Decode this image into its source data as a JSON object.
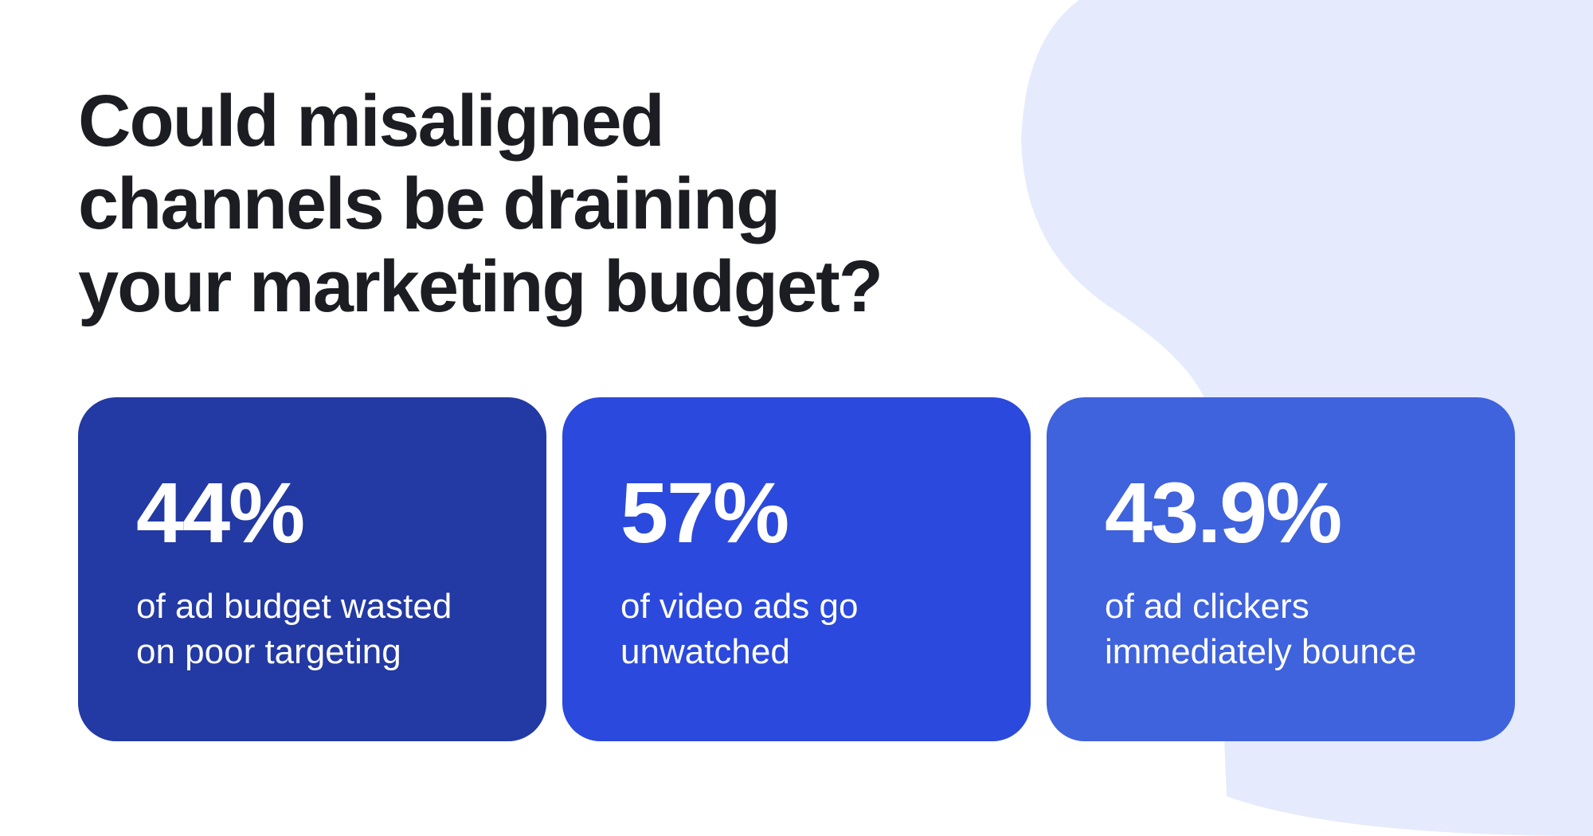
{
  "headline": {
    "lines": [
      "Could misaligned",
      "channels be draining",
      "your marketing budget?"
    ]
  },
  "stats": [
    {
      "value": "44%",
      "description_lines": [
        "of ad budget wasted",
        "on poor targeting"
      ],
      "color": "#2339a3"
    },
    {
      "value": "57%",
      "description_lines": [
        "of video ads go",
        "unwatched"
      ],
      "color": "#2b49dc"
    },
    {
      "value": "43.9%",
      "description_lines": [
        "of ad clickers",
        "immediately bounce"
      ],
      "color": "#3f62dd"
    }
  ],
  "colors": {
    "background": "#ffffff",
    "headline_text": "#1c1d22",
    "blob": "#e5ebfd",
    "stat_text": "#ffffff"
  }
}
